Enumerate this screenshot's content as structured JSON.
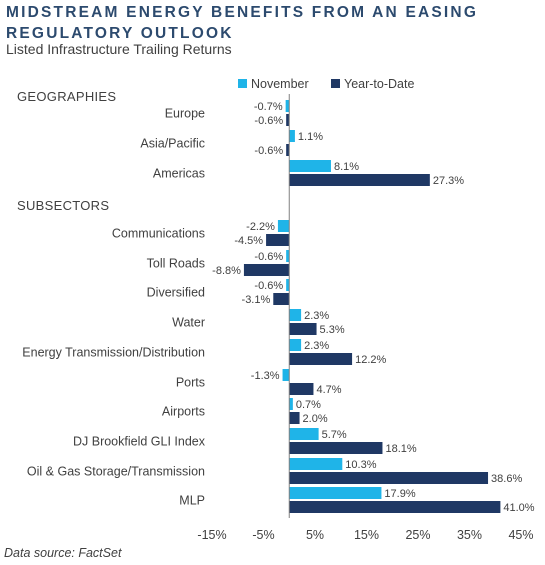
{
  "title": "MIDSTREAM ENERGY BENEFITS FROM AN EASING REGULATORY OUTLOOK",
  "subtitle": "Listed Infrastructure Trailing Returns",
  "source": "Data source: FactSet",
  "colors": {
    "november": "#1fb4e8",
    "ytd": "#1f3864",
    "title": "#2c4a6e",
    "text": "#404040",
    "axis": "#808080"
  },
  "chart_data": {
    "type": "bar",
    "orientation": "horizontal",
    "legend": {
      "position": "top",
      "entries": [
        "November",
        "Year-to-Date"
      ]
    },
    "groups": [
      {
        "header": "GEOGRAPHIES",
        "categories": [
          "Europe",
          "Asia/Pacific",
          "Americas"
        ]
      },
      {
        "header": "SUBSECTORS",
        "categories": [
          "Communications",
          "Toll Roads",
          "Diversified",
          "Water",
          "Energy Transmission/Distribution",
          "Ports",
          "Airports",
          "DJ Brookfield GLI Index",
          "Oil & Gas Storage/Transmission",
          "MLP"
        ]
      }
    ],
    "categories": [
      "Europe",
      "Asia/Pacific",
      "Americas",
      "Communications",
      "Toll Roads",
      "Diversified",
      "Water",
      "Energy Transmission/Distribution",
      "Ports",
      "Airports",
      "DJ Brookfield GLI Index",
      "Oil & Gas Storage/Transmission",
      "MLP"
    ],
    "series": [
      {
        "name": "November",
        "values": [
          -0.7,
          1.1,
          8.1,
          -2.2,
          -0.6,
          -0.6,
          2.3,
          2.3,
          -1.3,
          0.7,
          5.7,
          10.3,
          17.9
        ],
        "labels": [
          "-0.7%",
          "1.1%",
          "8.1%",
          "-2.2%",
          "-0.6%",
          "-0.6%",
          "2.3%",
          "2.3%",
          "-1.3%",
          "0.7%",
          "5.7%",
          "10.3%",
          "17.9%"
        ]
      },
      {
        "name": "Year-to-Date",
        "values": [
          -0.6,
          -0.6,
          27.3,
          -4.5,
          -8.8,
          -3.1,
          5.3,
          12.2,
          4.7,
          2.0,
          18.1,
          38.6,
          41.0
        ],
        "labels": [
          "-0.6%",
          "-0.6%",
          "27.3%",
          "-4.5%",
          "-8.8%",
          "-3.1%",
          "5.3%",
          "12.2%",
          "4.7%",
          "2.0%",
          "18.1%",
          "38.6%",
          "41.0%"
        ]
      }
    ],
    "xticks": [
      "-15%",
      "-5%",
      "5%",
      "15%",
      "25%",
      "35%",
      "45%"
    ],
    "xtick_values": [
      -15,
      -5,
      5,
      15,
      25,
      35,
      45
    ],
    "xlim": [
      -15,
      45
    ],
    "grid": false
  }
}
